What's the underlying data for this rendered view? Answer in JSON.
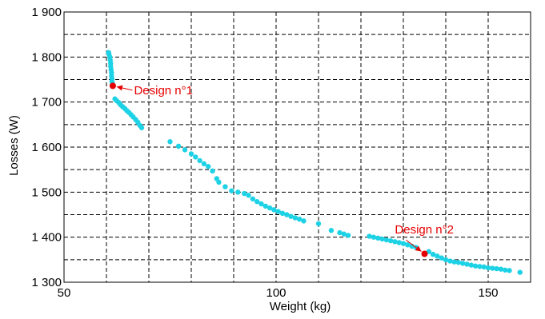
{
  "chart_data": {
    "type": "scatter",
    "title": "",
    "xlabel": "Weight (kg)",
    "ylabel": "Losses (W)",
    "xlim": [
      50,
      160
    ],
    "ylim": [
      1300,
      1900
    ],
    "grid": true,
    "x_ticks": [
      {
        "value": 50,
        "label": "50"
      },
      {
        "value": 100,
        "label": "100"
      },
      {
        "value": 150,
        "label": "150"
      }
    ],
    "y_ticks": [
      {
        "value": 1300,
        "label": "1 300"
      },
      {
        "value": 1400,
        "label": "1 400"
      },
      {
        "value": 1500,
        "label": "1 500"
      },
      {
        "value": 1600,
        "label": "1 600"
      },
      {
        "value": 1700,
        "label": "1 700"
      },
      {
        "value": 1800,
        "label": "1 800"
      },
      {
        "value": 1900,
        "label": "1 900"
      }
    ],
    "x_gridlines": [
      50,
      60,
      70,
      80,
      90,
      100,
      110,
      120,
      130,
      140,
      150,
      160
    ],
    "y_gridlines": [
      1300,
      1350,
      1400,
      1450,
      1500,
      1550,
      1600,
      1650,
      1700,
      1750,
      1800,
      1850,
      1900
    ],
    "point_color": "#1ed2e6",
    "highlight_color": "#e60000",
    "series": [
      {
        "values": [
          [
            60.5,
            1810
          ],
          [
            60.6,
            1806
          ],
          [
            60.8,
            1800
          ],
          [
            60.9,
            1793
          ],
          [
            61.0,
            1786
          ],
          [
            61.0,
            1779
          ],
          [
            61.1,
            1772
          ],
          [
            61.2,
            1765
          ],
          [
            61.2,
            1758
          ],
          [
            61.3,
            1752
          ],
          [
            61.3,
            1746
          ],
          [
            61.4,
            1741
          ],
          [
            62.0,
            1707
          ],
          [
            62.4,
            1703
          ],
          [
            62.9,
            1699
          ],
          [
            63.3,
            1694
          ],
          [
            63.8,
            1690
          ],
          [
            64.3,
            1686
          ],
          [
            64.8,
            1681
          ],
          [
            65.3,
            1677
          ],
          [
            65.8,
            1672
          ],
          [
            66.3,
            1667
          ],
          [
            66.9,
            1661
          ],
          [
            67.4,
            1655
          ],
          [
            67.9,
            1648
          ],
          [
            68.3,
            1643
          ],
          [
            75.0,
            1612
          ],
          [
            77.0,
            1602
          ],
          [
            78.5,
            1594
          ],
          [
            80.0,
            1585
          ],
          [
            81.0,
            1578
          ],
          [
            82.0,
            1570
          ],
          [
            83.0,
            1563
          ],
          [
            84.0,
            1557
          ],
          [
            85.0,
            1547
          ],
          [
            86.0,
            1530
          ],
          [
            86.5,
            1522
          ],
          [
            88.0,
            1512
          ],
          [
            89.5,
            1503
          ],
          [
            91.0,
            1500
          ],
          [
            92.5,
            1497
          ],
          [
            93.5,
            1493
          ],
          [
            94.5,
            1485
          ],
          [
            95.5,
            1479
          ],
          [
            96.5,
            1474
          ],
          [
            97.5,
            1469
          ],
          [
            98.5,
            1465
          ],
          [
            99.5,
            1461
          ],
          [
            100.5,
            1457
          ],
          [
            101.5,
            1453
          ],
          [
            102.5,
            1450
          ],
          [
            103.5,
            1446
          ],
          [
            104.5,
            1443
          ],
          [
            105.5,
            1440
          ],
          [
            106.5,
            1436
          ],
          [
            110.0,
            1430
          ],
          [
            113.0,
            1415
          ],
          [
            115.0,
            1410
          ],
          [
            116.0,
            1407
          ],
          [
            117.0,
            1404
          ],
          [
            122.0,
            1402
          ],
          [
            123.0,
            1400
          ],
          [
            124.0,
            1398
          ],
          [
            125.0,
            1396
          ],
          [
            126.0,
            1394
          ],
          [
            127.0,
            1392
          ],
          [
            128.0,
            1390
          ],
          [
            129.0,
            1388
          ],
          [
            130.0,
            1386
          ],
          [
            131.0,
            1383
          ],
          [
            132.0,
            1380
          ],
          [
            133.0,
            1377
          ],
          [
            136.0,
            1368
          ],
          [
            137.0,
            1362
          ],
          [
            138.0,
            1358
          ],
          [
            139.0,
            1354
          ],
          [
            140.0,
            1350
          ],
          [
            141.0,
            1347
          ],
          [
            142.0,
            1345
          ],
          [
            143.0,
            1344
          ],
          [
            144.0,
            1342
          ],
          [
            145.0,
            1340
          ],
          [
            146.0,
            1338
          ],
          [
            147.0,
            1336
          ],
          [
            148.0,
            1335
          ],
          [
            149.0,
            1334
          ],
          [
            150.0,
            1332
          ],
          [
            151.0,
            1331
          ],
          [
            152.0,
            1330
          ],
          [
            153.0,
            1329
          ],
          [
            154.0,
            1327
          ],
          [
            155.0,
            1326
          ],
          [
            157.5,
            1322
          ]
        ]
      }
    ],
    "highlights": [
      {
        "label": "Design n°1",
        "x": 61.5,
        "y": 1736,
        "label_x": 66.5,
        "label_y": 1730
      },
      {
        "label": "Design n°2",
        "x": 135.0,
        "y": 1363,
        "label_x": 128.0,
        "label_y": 1408
      }
    ]
  }
}
